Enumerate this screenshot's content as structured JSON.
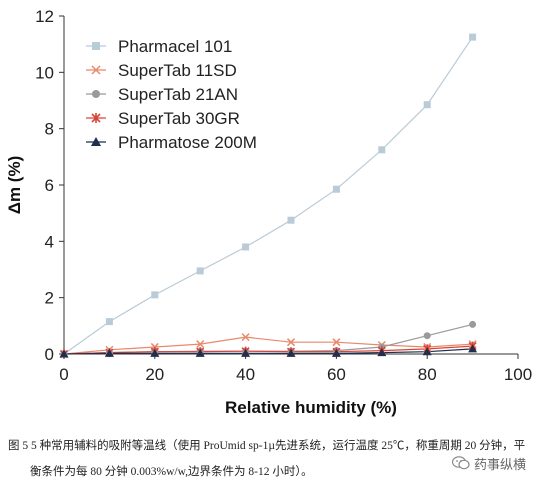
{
  "chart_data": {
    "type": "line",
    "xlabel": "Relative humidity (%)",
    "ylabel": "Δm (%)",
    "xlim": [
      0,
      100
    ],
    "ylim": [
      0,
      12
    ],
    "xticks": [
      0,
      20,
      40,
      60,
      80,
      100
    ],
    "yticks": [
      0,
      2,
      4,
      6,
      8,
      10,
      12
    ],
    "legend_placement": "top-left",
    "grid": false,
    "series": [
      {
        "name": "Pharmacel 101",
        "marker": "square",
        "color": "#b9cbd6",
        "points": [
          [
            0,
            0
          ],
          [
            10,
            1.15
          ],
          [
            20,
            2.1
          ],
          [
            30,
            2.95
          ],
          [
            40,
            3.8
          ],
          [
            50,
            4.75
          ],
          [
            60,
            5.85
          ],
          [
            70,
            7.25
          ],
          [
            80,
            8.85
          ],
          [
            90,
            11.25
          ]
        ]
      },
      {
        "name": "SuperTab 11SD",
        "marker": "x",
        "color": "#e8896a",
        "points": [
          [
            0,
            0
          ],
          [
            10,
            0.15
          ],
          [
            20,
            0.25
          ],
          [
            30,
            0.35
          ],
          [
            40,
            0.6
          ],
          [
            50,
            0.42
          ],
          [
            60,
            0.42
          ],
          [
            70,
            0.32
          ],
          [
            80,
            0.25
          ],
          [
            90,
            0.35
          ]
        ]
      },
      {
        "name": "SuperTab 21AN",
        "marker": "circle",
        "color": "#9a9a9a",
        "points": [
          [
            0,
            0
          ],
          [
            10,
            0.05
          ],
          [
            20,
            0.08
          ],
          [
            30,
            0.1
          ],
          [
            40,
            0.1
          ],
          [
            50,
            0.1
          ],
          [
            60,
            0.12
          ],
          [
            70,
            0.25
          ],
          [
            80,
            0.65
          ],
          [
            90,
            1.05
          ]
        ]
      },
      {
        "name": "SuperTab 30GR",
        "marker": "asterisk",
        "color": "#d9443a",
        "points": [
          [
            0,
            0
          ],
          [
            10,
            0.05
          ],
          [
            20,
            0.08
          ],
          [
            30,
            0.08
          ],
          [
            40,
            0.1
          ],
          [
            50,
            0.08
          ],
          [
            60,
            0.08
          ],
          [
            70,
            0.12
          ],
          [
            80,
            0.18
          ],
          [
            90,
            0.28
          ]
        ]
      },
      {
        "name": "Pharmatose 200M",
        "marker": "triangle",
        "color": "#1f2f4d",
        "points": [
          [
            0,
            0
          ],
          [
            10,
            0.02
          ],
          [
            20,
            0.02
          ],
          [
            30,
            0.02
          ],
          [
            40,
            0.02
          ],
          [
            50,
            0.02
          ],
          [
            60,
            0.02
          ],
          [
            70,
            0.05
          ],
          [
            80,
            0.08
          ],
          [
            90,
            0.18
          ]
        ]
      }
    ]
  },
  "caption": {
    "line1": "图 5   5 种常用辅料的吸附等温线（使用 ProUmid sp-1µ先进系统，运行温度 25℃，称重周期 20 分钟，平",
    "line2": "衡条件为每 80 分钟 0.003%w/w,边界条件为 8-12 小时）。"
  },
  "watermark": {
    "text": "药事纵横",
    "icon": "wechat-icon"
  }
}
